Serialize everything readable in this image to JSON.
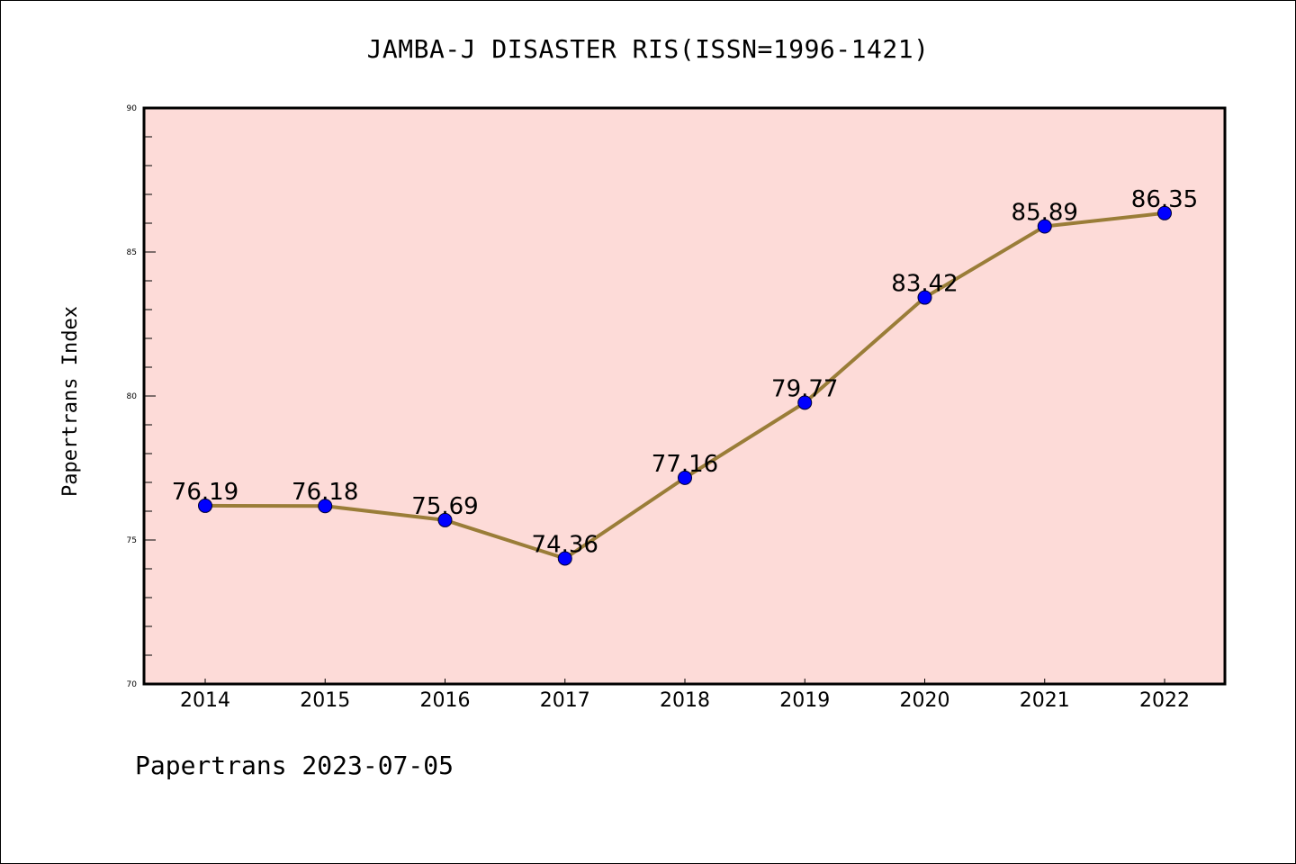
{
  "chart_data": {
    "type": "line",
    "title": "JAMBA-J DISASTER RIS(ISSN=1996-1421)",
    "xlabel": "",
    "ylabel": "Papertrans Index",
    "categories": [
      "2014",
      "2015",
      "2016",
      "2017",
      "2018",
      "2019",
      "2020",
      "2021",
      "2022"
    ],
    "series": [
      {
        "name": "Papertrans Index",
        "values": [
          76.19,
          76.18,
          75.69,
          74.36,
          77.16,
          79.77,
          83.42,
          85.89,
          86.35
        ],
        "labels": [
          "76.19",
          "76.18",
          "75.69",
          "74.36",
          "77.16",
          "79.77",
          "83.42",
          "85.89",
          "86.35"
        ]
      }
    ],
    "ylim": [
      70,
      90
    ],
    "yticks": [
      "70",
      "75",
      "80",
      "85",
      "90"
    ],
    "grid": false,
    "legend": "none",
    "colors": {
      "background": "#fddbd8",
      "line": "#9a7d38",
      "marker": "#0000ff",
      "axis": "#000000"
    }
  },
  "footer": "Papertrans 2023-07-05"
}
